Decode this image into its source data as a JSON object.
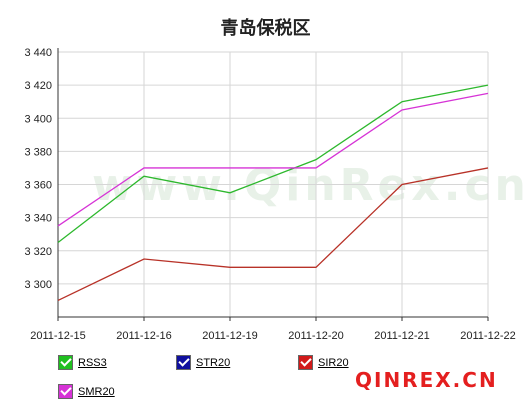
{
  "chart_data": {
    "type": "line",
    "title": "青岛保税区",
    "categories": [
      "2011-12-15",
      "2011-12-16",
      "2011-12-19",
      "2011-12-20",
      "2011-12-21",
      "2011-12-22"
    ],
    "ylim": [
      3280,
      3440
    ],
    "yticks": [
      "3 300",
      "3 320",
      "3 340",
      "3 360",
      "3 380",
      "3 400",
      "3 420",
      "3 440"
    ],
    "ytick_values": [
      3300,
      3320,
      3340,
      3360,
      3380,
      3400,
      3420,
      3440
    ],
    "grid": true,
    "legend_placement": "bottom",
    "series": [
      {
        "name": "RSS3",
        "color": "#2db82d",
        "checkbox": "#1fbf1f",
        "values": [
          3325,
          3365,
          3355,
          3375,
          3410,
          3420
        ]
      },
      {
        "name": "STR20",
        "color": "#1a1aa8",
        "checkbox": "#10109e",
        "values": [
          null,
          null,
          null,
          null,
          null,
          null
        ]
      },
      {
        "name": "SIR20",
        "color": "#b83228",
        "checkbox": "#d11a1a",
        "values": [
          3290,
          3315,
          3310,
          3310,
          3360,
          3370
        ]
      },
      {
        "name": "SMR20",
        "color": "#d633d6",
        "checkbox": "#d633d6",
        "values": [
          3335,
          3370,
          3370,
          3370,
          3405,
          3415
        ]
      }
    ]
  },
  "watermark": "www.QinRex.cn",
  "brand": {
    "text": "QINREX",
    "dot": ".",
    "suffix": "CN"
  }
}
